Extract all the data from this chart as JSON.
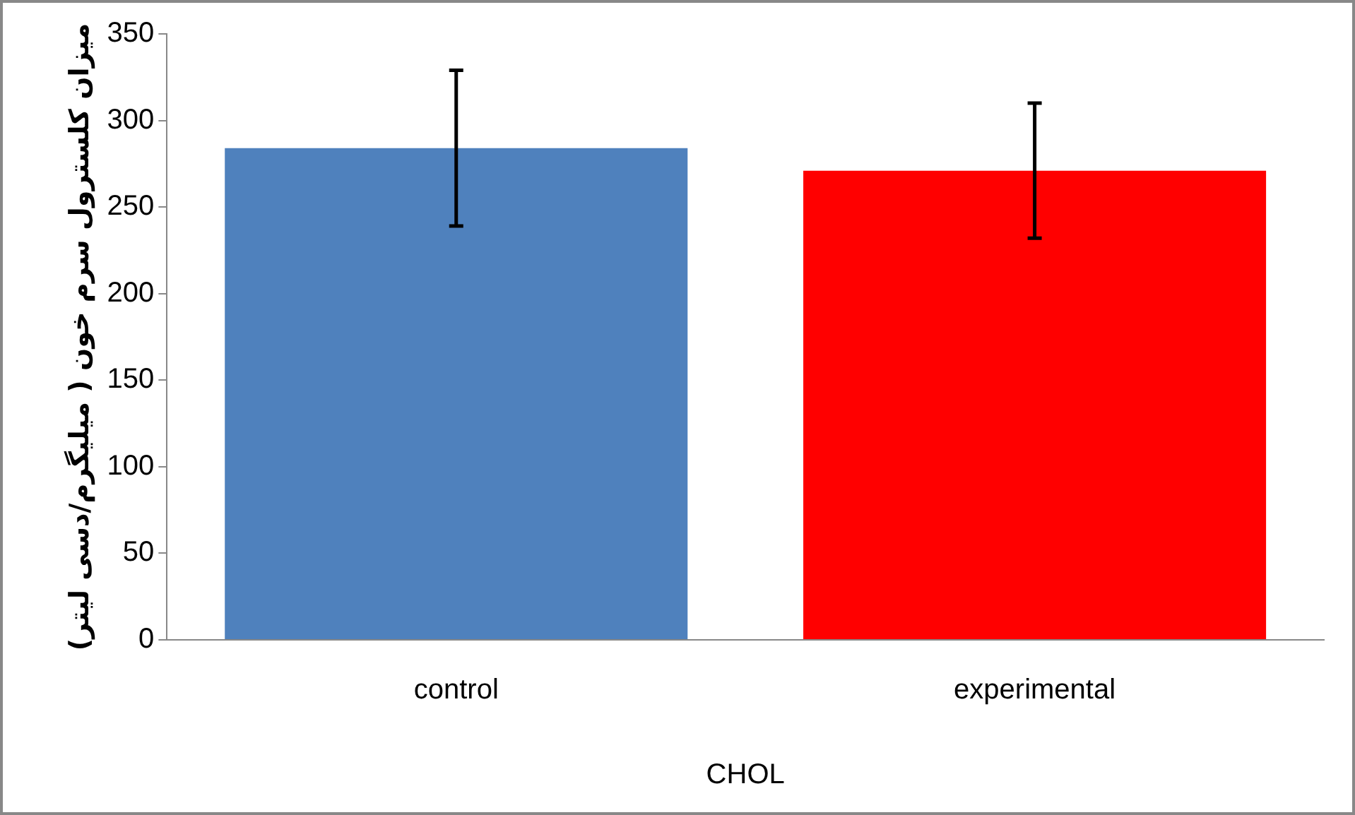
{
  "chart_data": {
    "type": "bar",
    "ylabel": "میزان کلسترول سرم خون ( میلیگرم/دسی لیتر)",
    "xlabel": "CHOL",
    "categories": [
      "control",
      "experimental"
    ],
    "values": [
      284,
      271
    ],
    "colors": [
      "#4f81bd",
      "#ff0000"
    ],
    "errors": [
      45,
      39
    ],
    "ylim": [
      0,
      350
    ],
    "yticks": [
      0,
      50,
      100,
      150,
      200,
      250,
      300,
      350
    ],
    "grid": false,
    "legend": false
  }
}
